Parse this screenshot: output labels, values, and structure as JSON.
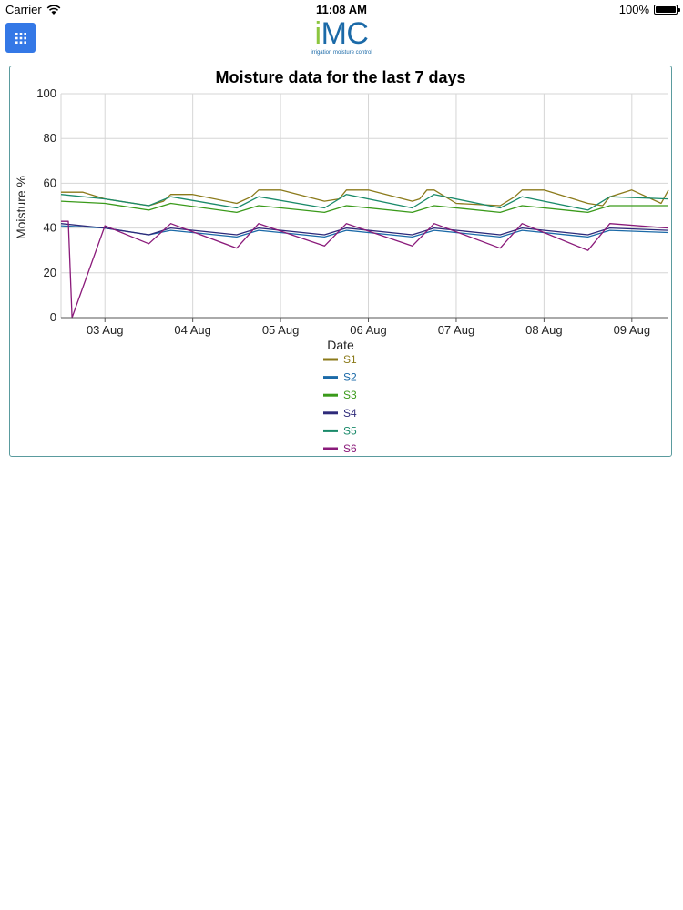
{
  "status_bar": {
    "carrier": "Carrier",
    "time": "11:08 AM",
    "battery": "100%"
  },
  "header": {
    "menu_icon": "grid-icon",
    "logo_i": "i",
    "logo_mc": "MC",
    "logo_subtitle": "irrigation moisture control",
    "logo_colors": {
      "i": "#8cc63f",
      "mc": "#1b6aa8"
    }
  },
  "chart_data": {
    "type": "line",
    "title": "Moisture data for the last 7 days",
    "xlabel": "Date",
    "ylabel": "Moisture %",
    "ylim": [
      0,
      100
    ],
    "xlim": [
      "2016-08-02T12:00",
      "2016-08-09T10:00"
    ],
    "y_ticks": [
      0,
      20,
      40,
      60,
      80,
      100
    ],
    "x_ticks": [
      "03 Aug",
      "04 Aug",
      "05 Aug",
      "06 Aug",
      "07 Aug",
      "08 Aug",
      "09 Aug"
    ],
    "x_tick_dates": [
      "2016-08-03",
      "2016-08-04",
      "2016-08-05",
      "2016-08-06",
      "2016-08-07",
      "2016-08-08",
      "2016-08-09"
    ],
    "grid": true,
    "legend_position": "bottom",
    "series": [
      {
        "name": "S1",
        "color": "#8b7a1a",
        "x": [
          "2016-08-02T12:00",
          "2016-08-02T18:00",
          "2016-08-03T00:00",
          "2016-08-03T12:00",
          "2016-08-03T16:00",
          "2016-08-03T18:00",
          "2016-08-04T00:00",
          "2016-08-04T12:00",
          "2016-08-04T16:00",
          "2016-08-04T18:00",
          "2016-08-05T00:00",
          "2016-08-05T12:00",
          "2016-08-05T16:00",
          "2016-08-05T18:00",
          "2016-08-06T00:00",
          "2016-08-06T12:00",
          "2016-08-06T14:00",
          "2016-08-06T16:00",
          "2016-08-06T18:00",
          "2016-08-07T00:00",
          "2016-08-07T12:00",
          "2016-08-07T16:00",
          "2016-08-07T18:00",
          "2016-08-08T00:00",
          "2016-08-08T12:00",
          "2016-08-08T16:00",
          "2016-08-08T18:00",
          "2016-08-09T00:00",
          "2016-08-09T08:00",
          "2016-08-09T10:00"
        ],
        "values": [
          56,
          56,
          53,
          50,
          52,
          55,
          55,
          51,
          54,
          57,
          57,
          52,
          53,
          57,
          57,
          52,
          53,
          57,
          57,
          51,
          50,
          54,
          57,
          57,
          51,
          50,
          54,
          57,
          51,
          57
        ]
      },
      {
        "name": "S2",
        "color": "#1b6aa8",
        "x": [
          "2016-08-02T12:00",
          "2016-08-03T00:00",
          "2016-08-03T12:00",
          "2016-08-03T18:00",
          "2016-08-04T12:00",
          "2016-08-04T18:00",
          "2016-08-05T12:00",
          "2016-08-05T18:00",
          "2016-08-06T12:00",
          "2016-08-06T18:00",
          "2016-08-07T12:00",
          "2016-08-07T18:00",
          "2016-08-08T12:00",
          "2016-08-08T18:00",
          "2016-08-09T10:00"
        ],
        "values": [
          41,
          40,
          37,
          39,
          36,
          39,
          36,
          39,
          36,
          39,
          36,
          39,
          36,
          39,
          38
        ]
      },
      {
        "name": "S3",
        "color": "#3a9a1a",
        "x": [
          "2016-08-02T12:00",
          "2016-08-03T00:00",
          "2016-08-03T12:00",
          "2016-08-03T18:00",
          "2016-08-04T12:00",
          "2016-08-04T18:00",
          "2016-08-05T12:00",
          "2016-08-05T18:00",
          "2016-08-06T12:00",
          "2016-08-06T18:00",
          "2016-08-07T12:00",
          "2016-08-07T18:00",
          "2016-08-08T12:00",
          "2016-08-08T18:00",
          "2016-08-09T10:00"
        ],
        "values": [
          52,
          51,
          48,
          51,
          47,
          50,
          47,
          50,
          47,
          50,
          47,
          50,
          47,
          50,
          50
        ]
      },
      {
        "name": "S4",
        "color": "#2e2a7a",
        "x": [
          "2016-08-02T12:00",
          "2016-08-03T00:00",
          "2016-08-03T12:00",
          "2016-08-03T18:00",
          "2016-08-04T12:00",
          "2016-08-04T18:00",
          "2016-08-05T12:00",
          "2016-08-05T18:00",
          "2016-08-06T12:00",
          "2016-08-06T18:00",
          "2016-08-07T12:00",
          "2016-08-07T18:00",
          "2016-08-08T12:00",
          "2016-08-08T18:00",
          "2016-08-09T10:00"
        ],
        "values": [
          42,
          40,
          37,
          40,
          37,
          40,
          37,
          40,
          37,
          40,
          37,
          40,
          37,
          40,
          39
        ]
      },
      {
        "name": "S5",
        "color": "#1a8a6a",
        "x": [
          "2016-08-02T12:00",
          "2016-08-03T00:00",
          "2016-08-03T12:00",
          "2016-08-03T18:00",
          "2016-08-04T12:00",
          "2016-08-04T18:00",
          "2016-08-05T12:00",
          "2016-08-05T18:00",
          "2016-08-06T12:00",
          "2016-08-06T18:00",
          "2016-08-07T12:00",
          "2016-08-07T18:00",
          "2016-08-08T12:00",
          "2016-08-08T18:00",
          "2016-08-09T10:00"
        ],
        "values": [
          55,
          53,
          50,
          54,
          49,
          54,
          49,
          55,
          49,
          55,
          49,
          54,
          48,
          54,
          53
        ]
      },
      {
        "name": "S6",
        "color": "#8a1a7a",
        "x": [
          "2016-08-02T12:00",
          "2016-08-02T14:00",
          "2016-08-02T15:00",
          "2016-08-03T00:00",
          "2016-08-03T12:00",
          "2016-08-03T18:00",
          "2016-08-04T12:00",
          "2016-08-04T18:00",
          "2016-08-05T12:00",
          "2016-08-05T18:00",
          "2016-08-06T12:00",
          "2016-08-06T18:00",
          "2016-08-07T12:00",
          "2016-08-07T18:00",
          "2016-08-08T12:00",
          "2016-08-08T18:00",
          "2016-08-09T10:00"
        ],
        "values": [
          43,
          43,
          0,
          41,
          33,
          42,
          31,
          42,
          32,
          42,
          32,
          42,
          31,
          42,
          30,
          42,
          40
        ]
      }
    ]
  }
}
